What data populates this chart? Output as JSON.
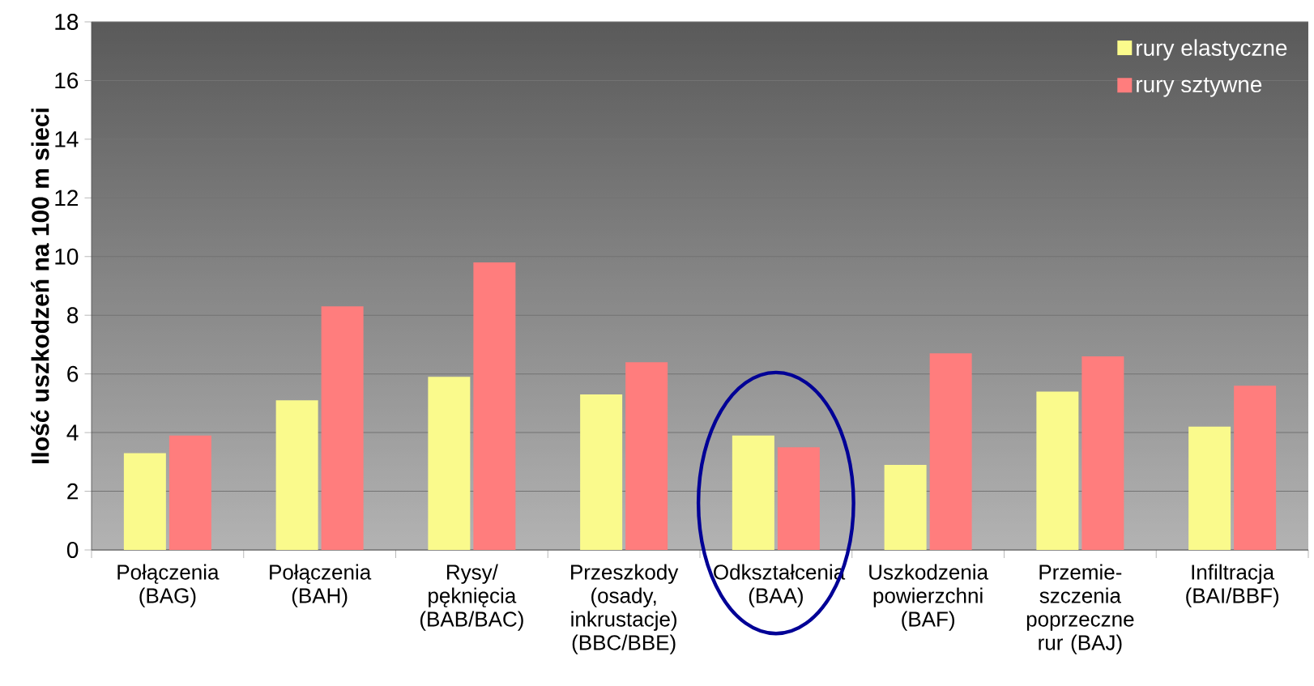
{
  "chart_data": {
    "type": "bar",
    "ylabel": "Ilość uszkodzeń na 100 m sieci",
    "categories": [
      "Połączenia (BAG)",
      "Połączenia (BAH)",
      "Rysy/ pęknięcia (BAB/BAC)",
      "Przeszkody (osady, inkrustacje) (BBC/BBE)",
      "Odkształcenia (BAA)",
      "Uszkodzenia powierzchni (BAF)",
      "Przemie- szczenia poprzeczne rur (BAJ)",
      "Infiltracja (BAI/BBF)"
    ],
    "series": [
      {
        "name": "rury elastyczne",
        "color": "#fafa8c",
        "values": [
          3.3,
          5.1,
          5.9,
          5.3,
          3.9,
          2.9,
          5.4,
          4.2
        ]
      },
      {
        "name": "rury sztywne",
        "color": "#ff7d7d",
        "values": [
          3.9,
          8.3,
          9.8,
          6.4,
          3.5,
          6.7,
          6.6,
          5.6
        ]
      }
    ],
    "ylim": [
      0,
      18
    ],
    "yticks": [
      0,
      2,
      4,
      6,
      8,
      10,
      12,
      14,
      16,
      18
    ],
    "grid": "y",
    "legend": "top right"
  }
}
